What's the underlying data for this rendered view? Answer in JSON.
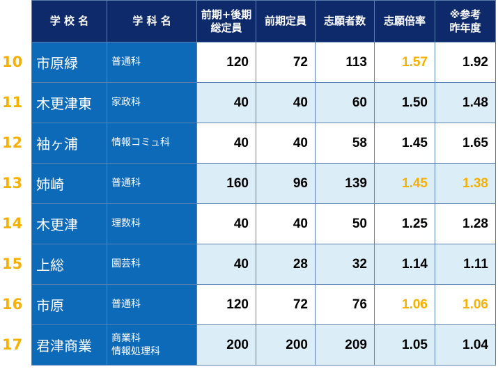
{
  "headers": [
    "学 校 名",
    "学 科 名",
    "前期+後期\n総定員",
    "前期定員",
    "志願者数",
    "志願倍率",
    "※参考\n昨年度"
  ],
  "rows": [
    {
      "rank": "10",
      "school": "市原緑",
      "dept": "普通科",
      "total": "120",
      "early": "72",
      "applicants": "113",
      "ratio": "1.57",
      "prev": "1.92",
      "style": "blue",
      "hl_ratio": true,
      "hl_prev": false
    },
    {
      "rank": "11",
      "school": "木更津東",
      "dept": "家政科",
      "total": "40",
      "early": "40",
      "applicants": "60",
      "ratio": "1.50",
      "prev": "1.48",
      "style": "light",
      "hl_ratio": false,
      "hl_prev": false
    },
    {
      "rank": "12",
      "school": "袖ヶ浦",
      "dept": "情報コミュ科",
      "total": "40",
      "early": "40",
      "applicants": "58",
      "ratio": "1.45",
      "prev": "1.65",
      "style": "blue",
      "hl_ratio": false,
      "hl_prev": false
    },
    {
      "rank": "13",
      "school": "姉崎",
      "dept": "普通科",
      "total": "160",
      "early": "96",
      "applicants": "139",
      "ratio": "1.45",
      "prev": "1.38",
      "style": "light",
      "hl_ratio": true,
      "hl_prev": true
    },
    {
      "rank": "14",
      "school": "木更津",
      "dept": "理数科",
      "total": "40",
      "early": "40",
      "applicants": "50",
      "ratio": "1.25",
      "prev": "1.28",
      "style": "blue",
      "hl_ratio": false,
      "hl_prev": false
    },
    {
      "rank": "15",
      "school": "上総",
      "dept": "園芸科",
      "total": "40",
      "early": "28",
      "applicants": "32",
      "ratio": "1.14",
      "prev": "1.11",
      "style": "light",
      "hl_ratio": false,
      "hl_prev": false
    },
    {
      "rank": "16",
      "school": "市原",
      "dept": "普通科",
      "total": "120",
      "early": "72",
      "applicants": "76",
      "ratio": "1.06",
      "prev": "1.06",
      "style": "blue",
      "hl_ratio": true,
      "hl_prev": true
    },
    {
      "rank": "17",
      "school": "君津商業",
      "dept": "商業科\n情報処理科",
      "total": "200",
      "early": "200",
      "applicants": "209",
      "ratio": "1.05",
      "prev": "1.04",
      "style": "light",
      "hl_ratio": false,
      "hl_prev": false
    }
  ],
  "colors": {
    "header_bg": "#0e2a6b",
    "name_bg": "#0d6ab8",
    "light_row": "#dbeef7",
    "highlight": "#f5b000"
  }
}
